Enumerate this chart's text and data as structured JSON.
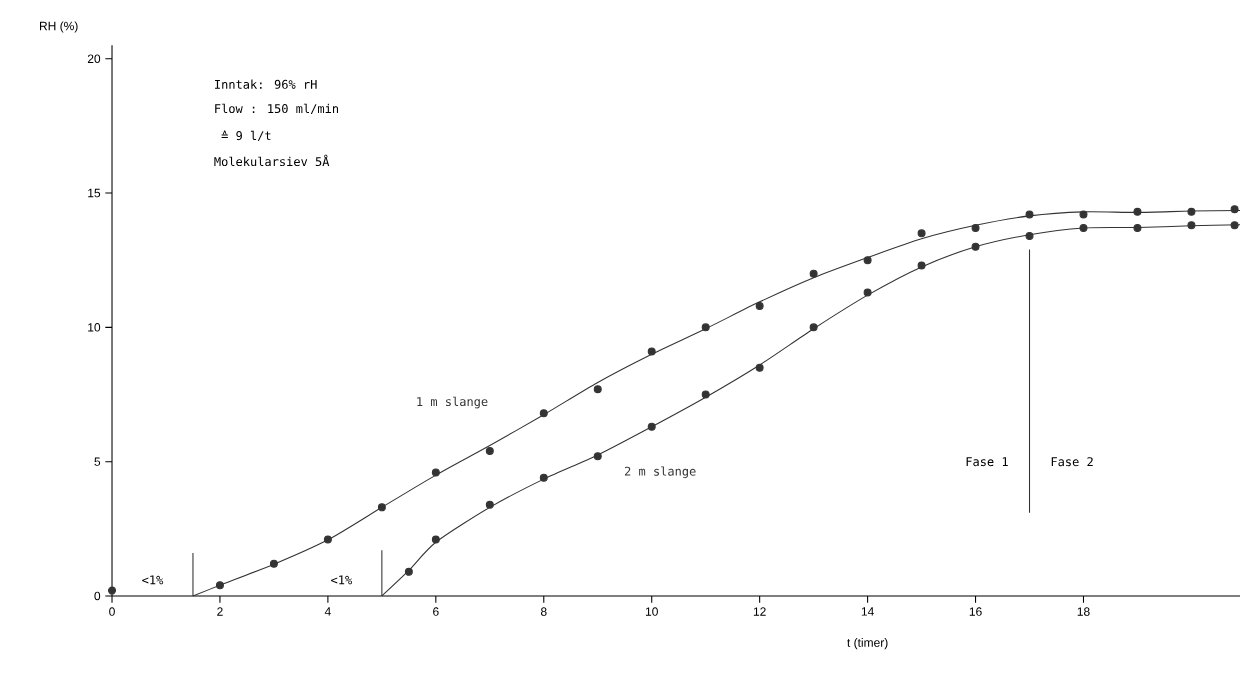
{
  "chart_data": {
    "type": "line",
    "xlabel": "t (timer)",
    "ylabel": "RH (%)",
    "xlim": [
      0,
      20.9
    ],
    "ylim": [
      0,
      20.5
    ],
    "xticks": [
      0,
      2,
      4,
      6,
      8,
      10,
      12,
      14,
      16,
      18
    ],
    "yticks": [
      0,
      5,
      10,
      15,
      20
    ],
    "grid": false,
    "line_style": "solid",
    "annotations": [
      "Inntak: 96% rH",
      "Flow  : 150 ml/min",
      "      ≙ 9 l/t",
      "Molekularsiev 5Å",
      "<1%",
      "<1%",
      "Fase 1",
      "Fase 2"
    ],
    "series": [
      {
        "name": "1 m slange",
        "marker": "none",
        "color": "#333333",
        "x": [
          1.5,
          2,
          3,
          4,
          5,
          6,
          7,
          8,
          9,
          10,
          11,
          12,
          13,
          14,
          15,
          16,
          17,
          18,
          19,
          20,
          20.9
        ],
        "values": [
          0,
          0.4,
          1.18,
          2.09,
          3.3,
          4.5,
          5.6,
          6.75,
          7.95,
          9.0,
          9.95,
          10.95,
          11.85,
          12.6,
          13.3,
          13.8,
          14.15,
          14.3,
          14.28,
          14.33,
          14.35
        ]
      },
      {
        "name": "2 m slange",
        "marker": "none",
        "color": "#333333",
        "x": [
          5,
          5.5,
          6,
          7,
          8,
          9,
          10,
          11,
          12,
          13,
          14,
          15,
          16,
          17,
          18,
          19,
          20,
          20.9
        ],
        "values": [
          0,
          0.95,
          2.0,
          3.3,
          4.35,
          5.25,
          6.3,
          7.4,
          8.6,
          9.95,
          11.2,
          12.25,
          13.0,
          13.45,
          13.7,
          13.72,
          13.78,
          13.82
        ]
      },
      {
        "type": "scatter",
        "marker": "circle",
        "color": "#333333",
        "x": [
          0,
          2,
          3,
          4,
          5,
          6,
          7,
          8,
          9,
          10,
          11,
          12,
          13,
          14,
          15,
          16,
          17,
          18,
          19,
          20,
          20.8
        ],
        "values": [
          0.2,
          0.4,
          1.2,
          2.1,
          3.3,
          4.6,
          5.4,
          6.8,
          7.7,
          9.1,
          10.0,
          10.8,
          12.0,
          12.5,
          13.5,
          13.7,
          14.2,
          14.2,
          14.3,
          14.3,
          14.4
        ]
      },
      {
        "type": "scatter",
        "marker": "circle",
        "color": "#333333",
        "x": [
          5.5,
          6,
          7,
          8,
          9,
          10,
          11,
          12,
          13,
          14,
          15,
          16,
          17,
          18,
          19,
          20,
          20.8
        ],
        "values": [
          0.9,
          2.1,
          3.4,
          4.4,
          5.2,
          6.3,
          7.5,
          8.5,
          10.0,
          11.3,
          12.3,
          13.0,
          13.4,
          13.7,
          13.7,
          13.8,
          13.8
        ]
      },
      {
        "type": "line",
        "marker": "none",
        "color": "#333333",
        "x": [
          1.5,
          1.5
        ],
        "values": [
          0,
          1.6
        ]
      },
      {
        "type": "line",
        "marker": "none",
        "color": "#333333",
        "x": [
          5,
          5
        ],
        "values": [
          0,
          1.7
        ]
      },
      {
        "type": "line",
        "marker": "none",
        "color": "#333333",
        "x": [
          17,
          17
        ],
        "values": [
          3.1,
          12.9
        ]
      }
    ]
  }
}
